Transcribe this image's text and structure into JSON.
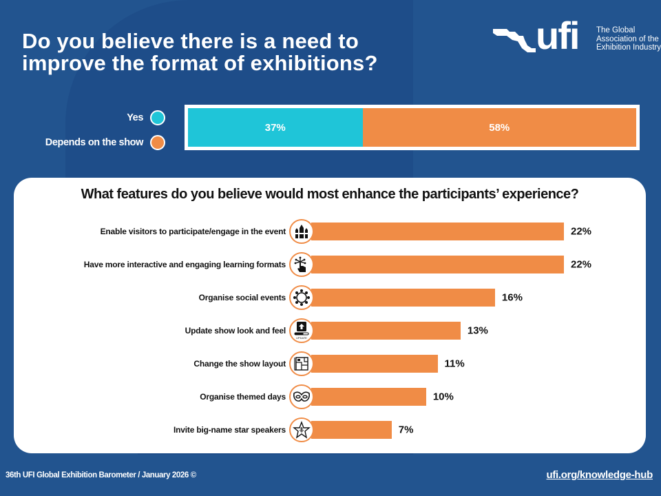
{
  "header": {
    "title_line1": "Do you believe there is a need to",
    "title_line2": "improve the format of exhibitions?"
  },
  "logo": {
    "wordmark": "ufi",
    "tagline_line1": "The Global",
    "tagline_line2": "Association of the",
    "tagline_line3": "Exhibition Industry"
  },
  "colors": {
    "background": "#22548f",
    "yes": "#1fc5d8",
    "depends": "#f08c46",
    "bar": "#f08c46"
  },
  "chart_data": [
    {
      "type": "bar",
      "orientation": "horizontal-stacked",
      "title": "Do you believe there is a need to improve the format of exhibitions?",
      "legend_position": "left",
      "series": [
        {
          "name": "Yes",
          "value": 37,
          "label": "37%",
          "color": "#1fc5d8"
        },
        {
          "name": "Depends on the show",
          "value": 58,
          "label": "58%",
          "color": "#f08c46"
        }
      ],
      "unit": "%"
    },
    {
      "type": "bar",
      "orientation": "horizontal",
      "title": "What features do you believe would most enhance the participants’ experience?",
      "xlabel": "",
      "ylabel": "",
      "xlim": [
        0,
        22
      ],
      "grid": false,
      "categories": [
        "Enable visitors to participate/engage in the event",
        "Have more interactive and engaging learning formats",
        "Organise social events",
        "Update show look and feel",
        "Change the show layout",
        "Organise themed days",
        "Invite big-name star speakers"
      ],
      "values": [
        22,
        22,
        16,
        13,
        11,
        10,
        7
      ],
      "labels": [
        "22%",
        "22%",
        "16%",
        "13%",
        "11%",
        "10%",
        "7%"
      ],
      "icons": [
        "raised-hands-icon",
        "touch-network-icon",
        "community-circle-icon",
        "update-screen-icon",
        "floor-plan-icon",
        "mask-icon",
        "star-microphone-icon"
      ],
      "unit": "%"
    }
  ],
  "icon_text": {
    "update": "UPDATE"
  },
  "footer": {
    "source": "36th UFI Global Exhibition Barometer / January 2026 ©",
    "link": "ufi.org/knowledge-hub"
  }
}
